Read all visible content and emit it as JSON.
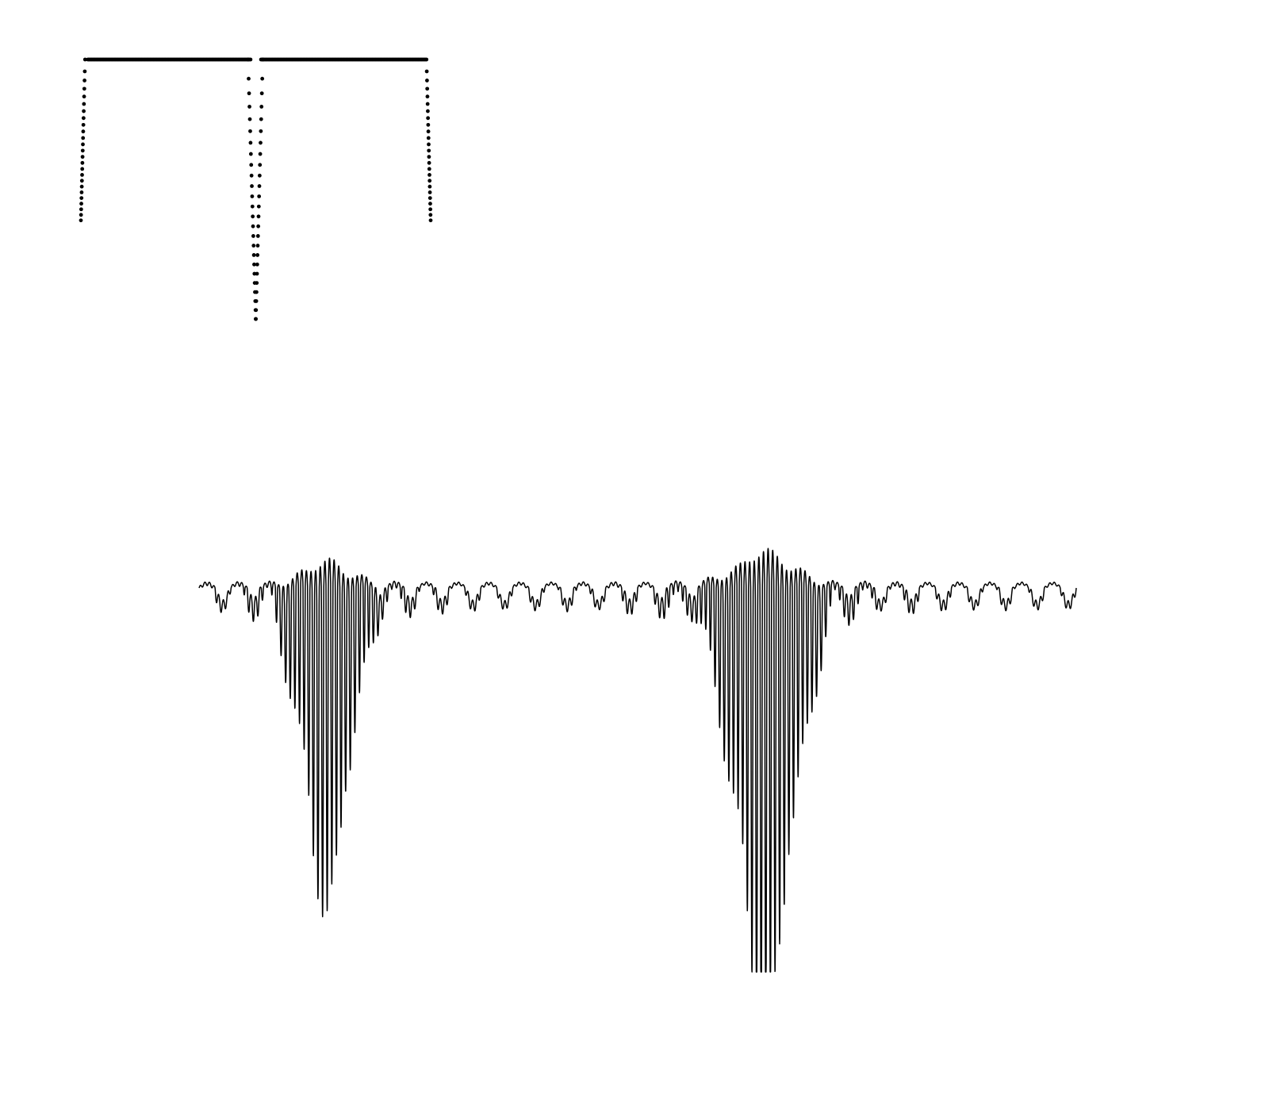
{
  "colors": {
    "background": "#ffffff",
    "ink": "#000000"
  },
  "chart_data": [
    {
      "type": "scatter",
      "shape": "dotted rectangular pulses",
      "marker": "dot",
      "grid": false,
      "legend": "none",
      "xlim": [
        0,
        1
      ],
      "ylim": [
        0,
        1
      ],
      "segments": [
        {
          "kind": "flat",
          "x_from": 0.02,
          "x_to": 0.485,
          "y": 1.0
        },
        {
          "kind": "flat",
          "x_from": 0.515,
          "x_to": 0.985,
          "y": 1.0
        },
        {
          "kind": "drop",
          "x_from": 0.012,
          "x_to": 0.0,
          "y_from": 1.0,
          "y_to": 0.38
        },
        {
          "kind": "drop",
          "x_from": 0.478,
          "x_to": 0.5,
          "y_from": 1.0,
          "y_to": 0.0
        },
        {
          "kind": "drop",
          "x_from": 0.52,
          "x_to": 0.5,
          "y_from": 1.0,
          "y_to": 0.0
        },
        {
          "kind": "drop",
          "x_from": 0.988,
          "x_to": 1.0,
          "y_from": 1.0,
          "y_to": 0.38
        }
      ]
    },
    {
      "type": "line",
      "shape": "oscillating waveform with two deep spikes",
      "grid": false,
      "legend": "none",
      "xlim": [
        0,
        1
      ],
      "ylim": [
        -1,
        1
      ],
      "carrier_cycles": 190,
      "ripple_cycles": 28,
      "ripple_amplitude": 0.045,
      "packets": [
        {
          "center": 0.145,
          "width": 0.045,
          "upper_peak": 0.21,
          "lower_peak": 0.74
        },
        {
          "center": 0.645,
          "width": 0.055,
          "upper_peak": 0.29,
          "lower_peak": 1.0
        }
      ]
    }
  ]
}
